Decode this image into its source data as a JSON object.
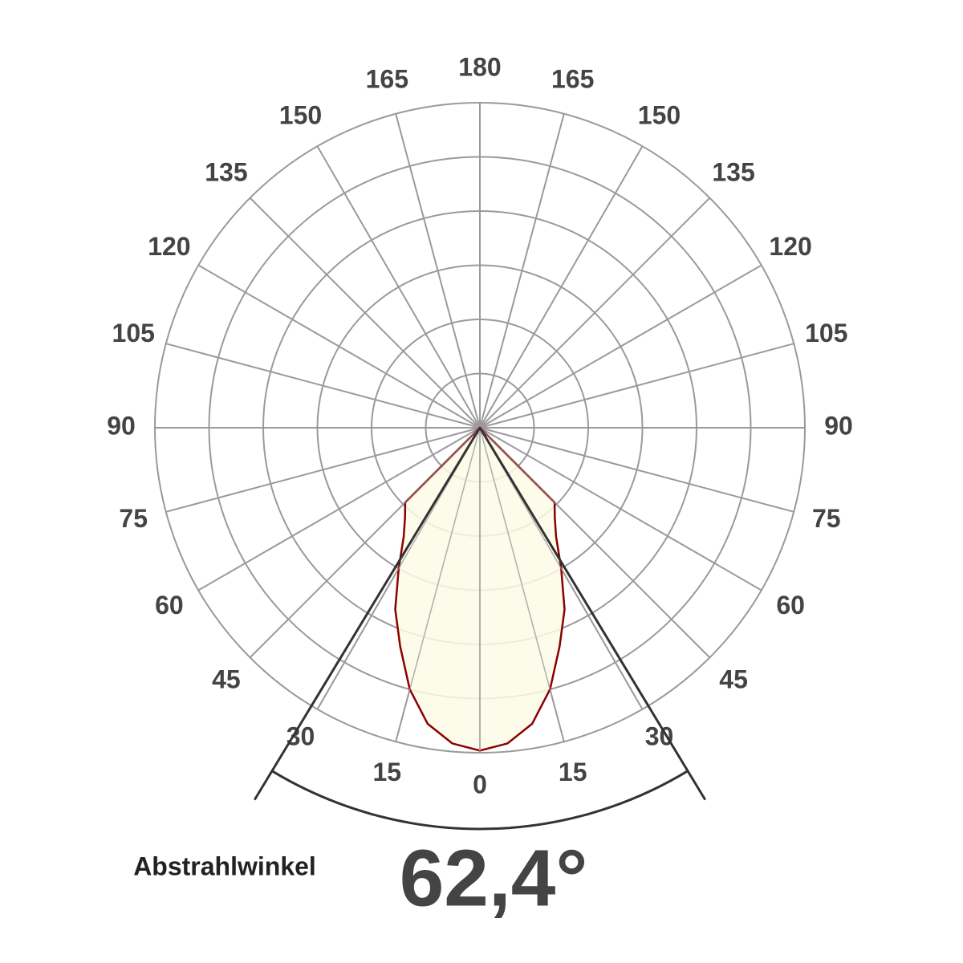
{
  "chart_data": {
    "type": "polar",
    "angle_ticks": [
      0,
      15,
      30,
      45,
      60,
      75,
      90,
      105,
      120,
      135,
      150,
      165,
      180
    ],
    "rlim": [
      0,
      6
    ],
    "rticks": [
      1,
      2,
      3,
      4,
      5,
      6
    ],
    "grid": true,
    "series": [
      {
        "color": "#8b0000",
        "fill": "#fdfbe6",
        "angles": [
          -50,
          -45,
          -40,
          -35,
          -30,
          -25,
          -20,
          -15,
          -10,
          -5,
          0,
          5,
          10,
          15,
          20,
          25,
          30,
          35,
          40,
          45,
          50
        ],
        "values": [
          0,
          1.95,
          2.15,
          2.45,
          3.0,
          3.7,
          4.3,
          5.0,
          5.55,
          5.85,
          5.96,
          5.85,
          5.55,
          5.0,
          4.3,
          3.7,
          3.0,
          2.45,
          2.15,
          1.95,
          0
        ]
      }
    ],
    "beam_label": "Abstrahlwinkel",
    "beam_angle": 62.4,
    "beam_angle_label": "62,4°",
    "beam_color": "#333333"
  }
}
